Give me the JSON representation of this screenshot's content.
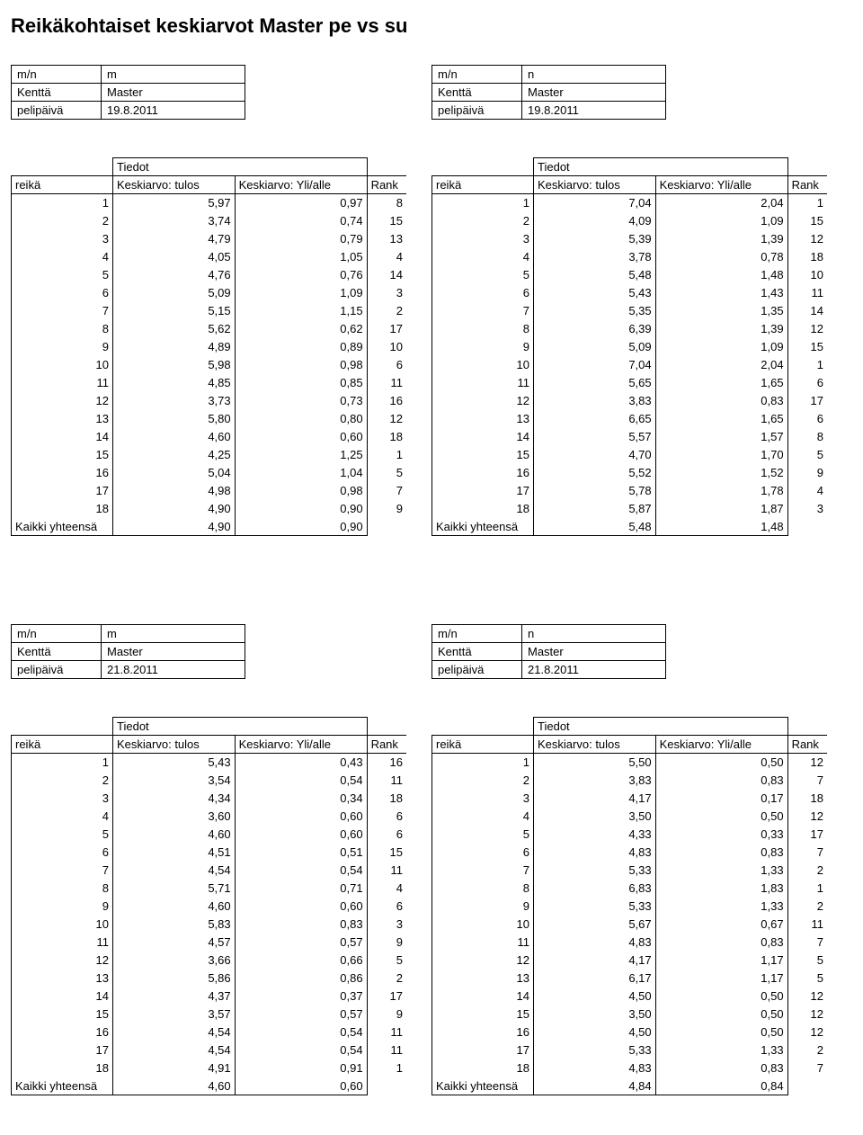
{
  "title": "Reikäkohtaiset keskiarvot Master pe vs su",
  "labels": {
    "mn": "m/n",
    "kentta": "Kenttä",
    "pelipaiva": "pelipäivä",
    "tiedot": "Tiedot",
    "reika": "reikä",
    "tulos": "Keskiarvo: tulos",
    "yli": "Keskiarvo: Yli/alle",
    "rank": "Rank",
    "total": "Kaikki yhteensä"
  },
  "sections": [
    {
      "blocks": [
        {
          "meta": {
            "mn": "m",
            "kentta": "Master",
            "pelipaiva": "19.8.2011"
          },
          "rows": [
            {
              "reika": "1",
              "tulos": "5,97",
              "yli": "0,97",
              "rank": "8"
            },
            {
              "reika": "2",
              "tulos": "3,74",
              "yli": "0,74",
              "rank": "15"
            },
            {
              "reika": "3",
              "tulos": "4,79",
              "yli": "0,79",
              "rank": "13"
            },
            {
              "reika": "4",
              "tulos": "4,05",
              "yli": "1,05",
              "rank": "4"
            },
            {
              "reika": "5",
              "tulos": "4,76",
              "yli": "0,76",
              "rank": "14"
            },
            {
              "reika": "6",
              "tulos": "5,09",
              "yli": "1,09",
              "rank": "3"
            },
            {
              "reika": "7",
              "tulos": "5,15",
              "yli": "1,15",
              "rank": "2"
            },
            {
              "reika": "8",
              "tulos": "5,62",
              "yli": "0,62",
              "rank": "17"
            },
            {
              "reika": "9",
              "tulos": "4,89",
              "yli": "0,89",
              "rank": "10"
            },
            {
              "reika": "10",
              "tulos": "5,98",
              "yli": "0,98",
              "rank": "6"
            },
            {
              "reika": "11",
              "tulos": "4,85",
              "yli": "0,85",
              "rank": "11"
            },
            {
              "reika": "12",
              "tulos": "3,73",
              "yli": "0,73",
              "rank": "16"
            },
            {
              "reika": "13",
              "tulos": "5,80",
              "yli": "0,80",
              "rank": "12"
            },
            {
              "reika": "14",
              "tulos": "4,60",
              "yli": "0,60",
              "rank": "18"
            },
            {
              "reika": "15",
              "tulos": "4,25",
              "yli": "1,25",
              "rank": "1"
            },
            {
              "reika": "16",
              "tulos": "5,04",
              "yli": "1,04",
              "rank": "5"
            },
            {
              "reika": "17",
              "tulos": "4,98",
              "yli": "0,98",
              "rank": "7"
            },
            {
              "reika": "18",
              "tulos": "4,90",
              "yli": "0,90",
              "rank": "9"
            }
          ],
          "total": {
            "tulos": "4,90",
            "yli": "0,90"
          }
        },
        {
          "meta": {
            "mn": "n",
            "kentta": "Master",
            "pelipaiva": "19.8.2011"
          },
          "rows": [
            {
              "reika": "1",
              "tulos": "7,04",
              "yli": "2,04",
              "rank": "1"
            },
            {
              "reika": "2",
              "tulos": "4,09",
              "yli": "1,09",
              "rank": "15"
            },
            {
              "reika": "3",
              "tulos": "5,39",
              "yli": "1,39",
              "rank": "12"
            },
            {
              "reika": "4",
              "tulos": "3,78",
              "yli": "0,78",
              "rank": "18"
            },
            {
              "reika": "5",
              "tulos": "5,48",
              "yli": "1,48",
              "rank": "10"
            },
            {
              "reika": "6",
              "tulos": "5,43",
              "yli": "1,43",
              "rank": "11"
            },
            {
              "reika": "7",
              "tulos": "5,35",
              "yli": "1,35",
              "rank": "14"
            },
            {
              "reika": "8",
              "tulos": "6,39",
              "yli": "1,39",
              "rank": "12"
            },
            {
              "reika": "9",
              "tulos": "5,09",
              "yli": "1,09",
              "rank": "15"
            },
            {
              "reika": "10",
              "tulos": "7,04",
              "yli": "2,04",
              "rank": "1"
            },
            {
              "reika": "11",
              "tulos": "5,65",
              "yli": "1,65",
              "rank": "6"
            },
            {
              "reika": "12",
              "tulos": "3,83",
              "yli": "0,83",
              "rank": "17"
            },
            {
              "reika": "13",
              "tulos": "6,65",
              "yli": "1,65",
              "rank": "6"
            },
            {
              "reika": "14",
              "tulos": "5,57",
              "yli": "1,57",
              "rank": "8"
            },
            {
              "reika": "15",
              "tulos": "4,70",
              "yli": "1,70",
              "rank": "5"
            },
            {
              "reika": "16",
              "tulos": "5,52",
              "yli": "1,52",
              "rank": "9"
            },
            {
              "reika": "17",
              "tulos": "5,78",
              "yli": "1,78",
              "rank": "4"
            },
            {
              "reika": "18",
              "tulos": "5,87",
              "yli": "1,87",
              "rank": "3"
            }
          ],
          "total": {
            "tulos": "5,48",
            "yli": "1,48"
          }
        }
      ]
    },
    {
      "blocks": [
        {
          "meta": {
            "mn": "m",
            "kentta": "Master",
            "pelipaiva": "21.8.2011"
          },
          "rows": [
            {
              "reika": "1",
              "tulos": "5,43",
              "yli": "0,43",
              "rank": "16"
            },
            {
              "reika": "2",
              "tulos": "3,54",
              "yli": "0,54",
              "rank": "11"
            },
            {
              "reika": "3",
              "tulos": "4,34",
              "yli": "0,34",
              "rank": "18"
            },
            {
              "reika": "4",
              "tulos": "3,60",
              "yli": "0,60",
              "rank": "6"
            },
            {
              "reika": "5",
              "tulos": "4,60",
              "yli": "0,60",
              "rank": "6"
            },
            {
              "reika": "6",
              "tulos": "4,51",
              "yli": "0,51",
              "rank": "15"
            },
            {
              "reika": "7",
              "tulos": "4,54",
              "yli": "0,54",
              "rank": "11"
            },
            {
              "reika": "8",
              "tulos": "5,71",
              "yli": "0,71",
              "rank": "4"
            },
            {
              "reika": "9",
              "tulos": "4,60",
              "yli": "0,60",
              "rank": "6"
            },
            {
              "reika": "10",
              "tulos": "5,83",
              "yli": "0,83",
              "rank": "3"
            },
            {
              "reika": "11",
              "tulos": "4,57",
              "yli": "0,57",
              "rank": "9"
            },
            {
              "reika": "12",
              "tulos": "3,66",
              "yli": "0,66",
              "rank": "5"
            },
            {
              "reika": "13",
              "tulos": "5,86",
              "yli": "0,86",
              "rank": "2"
            },
            {
              "reika": "14",
              "tulos": "4,37",
              "yli": "0,37",
              "rank": "17"
            },
            {
              "reika": "15",
              "tulos": "3,57",
              "yli": "0,57",
              "rank": "9"
            },
            {
              "reika": "16",
              "tulos": "4,54",
              "yli": "0,54",
              "rank": "11"
            },
            {
              "reika": "17",
              "tulos": "4,54",
              "yli": "0,54",
              "rank": "11"
            },
            {
              "reika": "18",
              "tulos": "4,91",
              "yli": "0,91",
              "rank": "1"
            }
          ],
          "total": {
            "tulos": "4,60",
            "yli": "0,60"
          }
        },
        {
          "meta": {
            "mn": "n",
            "kentta": "Master",
            "pelipaiva": "21.8.2011"
          },
          "rows": [
            {
              "reika": "1",
              "tulos": "5,50",
              "yli": "0,50",
              "rank": "12"
            },
            {
              "reika": "2",
              "tulos": "3,83",
              "yli": "0,83",
              "rank": "7"
            },
            {
              "reika": "3",
              "tulos": "4,17",
              "yli": "0,17",
              "rank": "18"
            },
            {
              "reika": "4",
              "tulos": "3,50",
              "yli": "0,50",
              "rank": "12"
            },
            {
              "reika": "5",
              "tulos": "4,33",
              "yli": "0,33",
              "rank": "17"
            },
            {
              "reika": "6",
              "tulos": "4,83",
              "yli": "0,83",
              "rank": "7"
            },
            {
              "reika": "7",
              "tulos": "5,33",
              "yli": "1,33",
              "rank": "2"
            },
            {
              "reika": "8",
              "tulos": "6,83",
              "yli": "1,83",
              "rank": "1"
            },
            {
              "reika": "9",
              "tulos": "5,33",
              "yli": "1,33",
              "rank": "2"
            },
            {
              "reika": "10",
              "tulos": "5,67",
              "yli": "0,67",
              "rank": "11"
            },
            {
              "reika": "11",
              "tulos": "4,83",
              "yli": "0,83",
              "rank": "7"
            },
            {
              "reika": "12",
              "tulos": "4,17",
              "yli": "1,17",
              "rank": "5"
            },
            {
              "reika": "13",
              "tulos": "6,17",
              "yli": "1,17",
              "rank": "5"
            },
            {
              "reika": "14",
              "tulos": "4,50",
              "yli": "0,50",
              "rank": "12"
            },
            {
              "reika": "15",
              "tulos": "3,50",
              "yli": "0,50",
              "rank": "12"
            },
            {
              "reika": "16",
              "tulos": "4,50",
              "yli": "0,50",
              "rank": "12"
            },
            {
              "reika": "17",
              "tulos": "5,33",
              "yli": "1,33",
              "rank": "2"
            },
            {
              "reika": "18",
              "tulos": "4,83",
              "yli": "0,83",
              "rank": "7"
            }
          ],
          "total": {
            "tulos": "4,84",
            "yli": "0,84"
          }
        }
      ]
    }
  ]
}
